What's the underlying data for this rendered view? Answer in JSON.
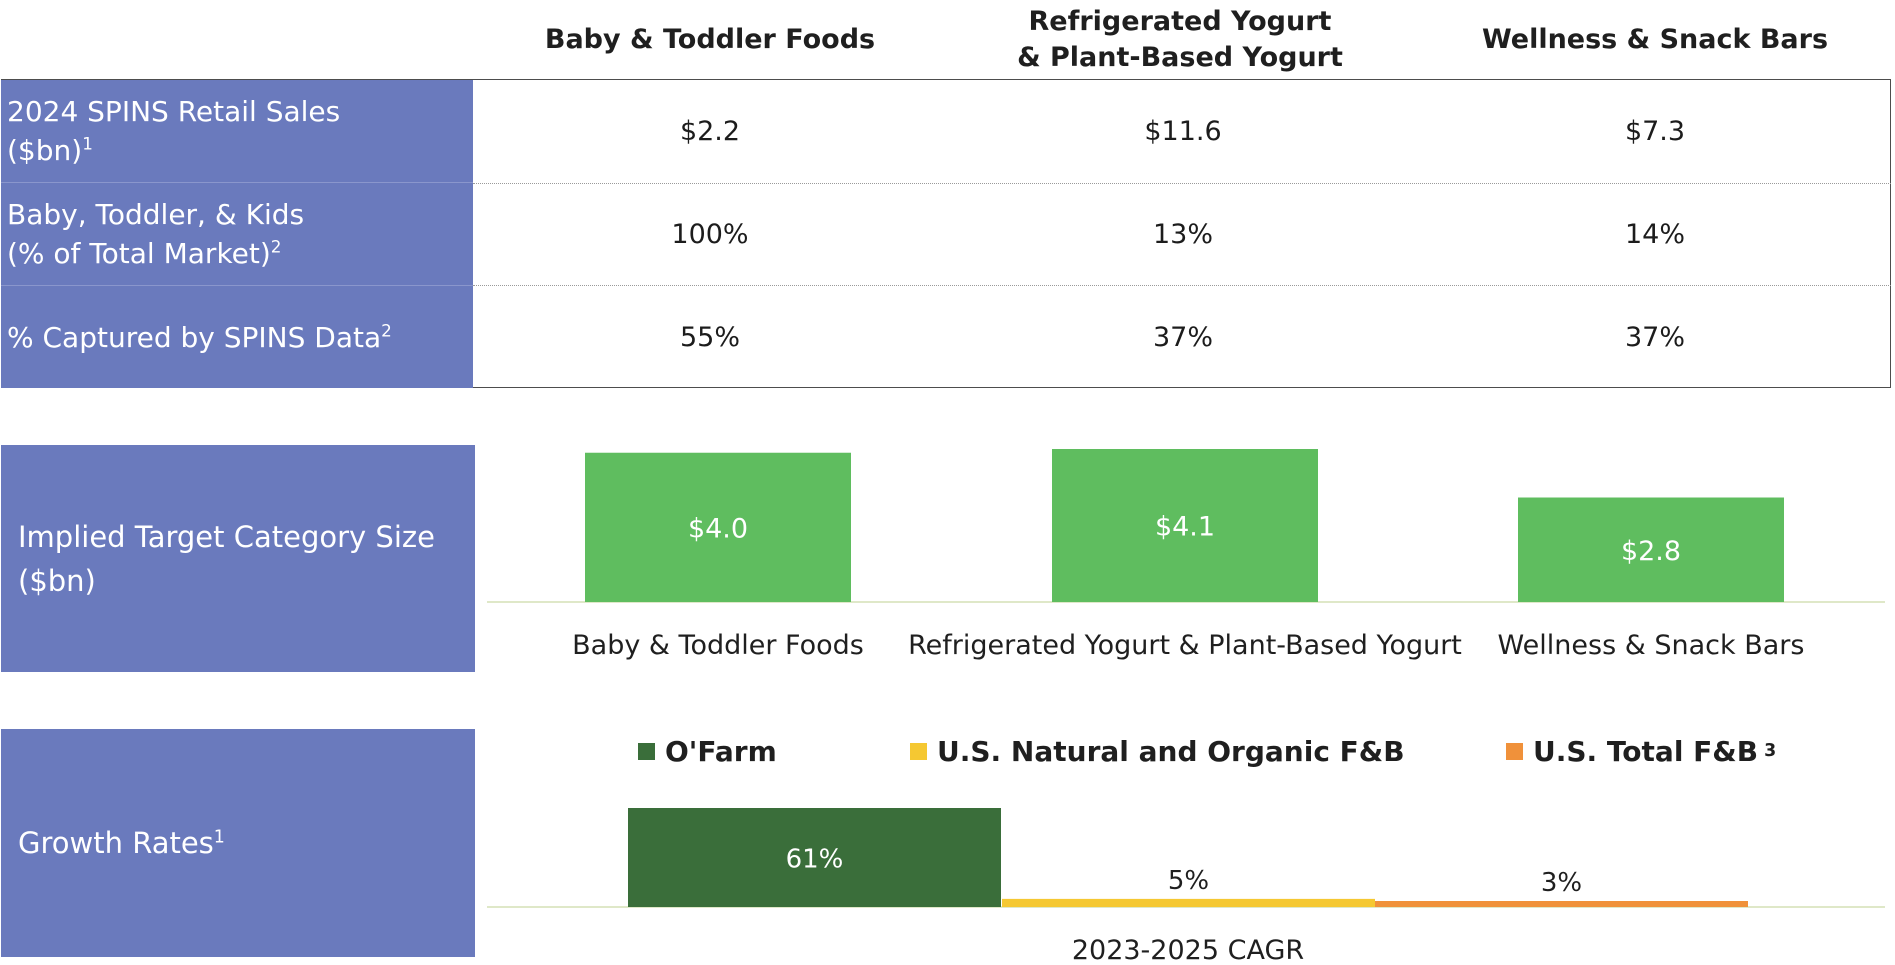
{
  "columns": [
    "Baby & Toddler Foods",
    "Refrigerated Yogurt\n& Plant-Based Yogurt",
    "Wellness & Snack Bars"
  ],
  "table": {
    "rows": [
      {
        "label_line1": "2024 SPINS Retail Sales",
        "label_line2": "($bn)",
        "sup": "1",
        "values": [
          "$2.2",
          "$11.6",
          "$7.3"
        ]
      },
      {
        "label_line1": "Baby, Toddler, & Kids",
        "label_line2": "(% of Total Market)",
        "sup": "2",
        "values": [
          "100%",
          "13%",
          "14%"
        ]
      },
      {
        "label_line1": "% Captured by SPINS Data",
        "label_line2": "",
        "sup": "2",
        "values": [
          "55%",
          "37%",
          "37%"
        ]
      }
    ]
  },
  "panels": {
    "category_size": {
      "line1": "Implied Target Category Size",
      "line2": "($bn)"
    },
    "growth": {
      "label": "Growth Rates",
      "sup": "1"
    }
  },
  "chart_data": [
    {
      "type": "bar",
      "title": "Implied Target Category Size ($bn)",
      "categories": [
        "Baby & Toddler Foods",
        "Refrigerated Yogurt & Plant-Based Yogurt",
        "Wellness & Snack Bars"
      ],
      "values": [
        4.0,
        4.1,
        2.8
      ],
      "value_labels": [
        "$4.0",
        "$4.1",
        "$2.8"
      ],
      "ylim": [
        0,
        4.1
      ],
      "grid": false,
      "color": "#5fbd5f"
    },
    {
      "type": "bar",
      "title": "Growth Rates",
      "categories": [
        "2023-2025 CAGR"
      ],
      "series": [
        {
          "name": "O'Farm",
          "values": [
            61
          ],
          "label": "61%",
          "color": "#3a6e3a"
        },
        {
          "name": "U.S. Natural and Organic F&B",
          "values": [
            5
          ],
          "label": "5%",
          "color": "#f5c832"
        },
        {
          "name": "U.S. Total F&B",
          "values": [
            3
          ],
          "label": "3%",
          "color": "#f0913a",
          "sup": "3"
        }
      ],
      "xlabel": "2023-2025 CAGR",
      "ylim": [
        0,
        61
      ],
      "grid": false,
      "legend": "top"
    }
  ]
}
